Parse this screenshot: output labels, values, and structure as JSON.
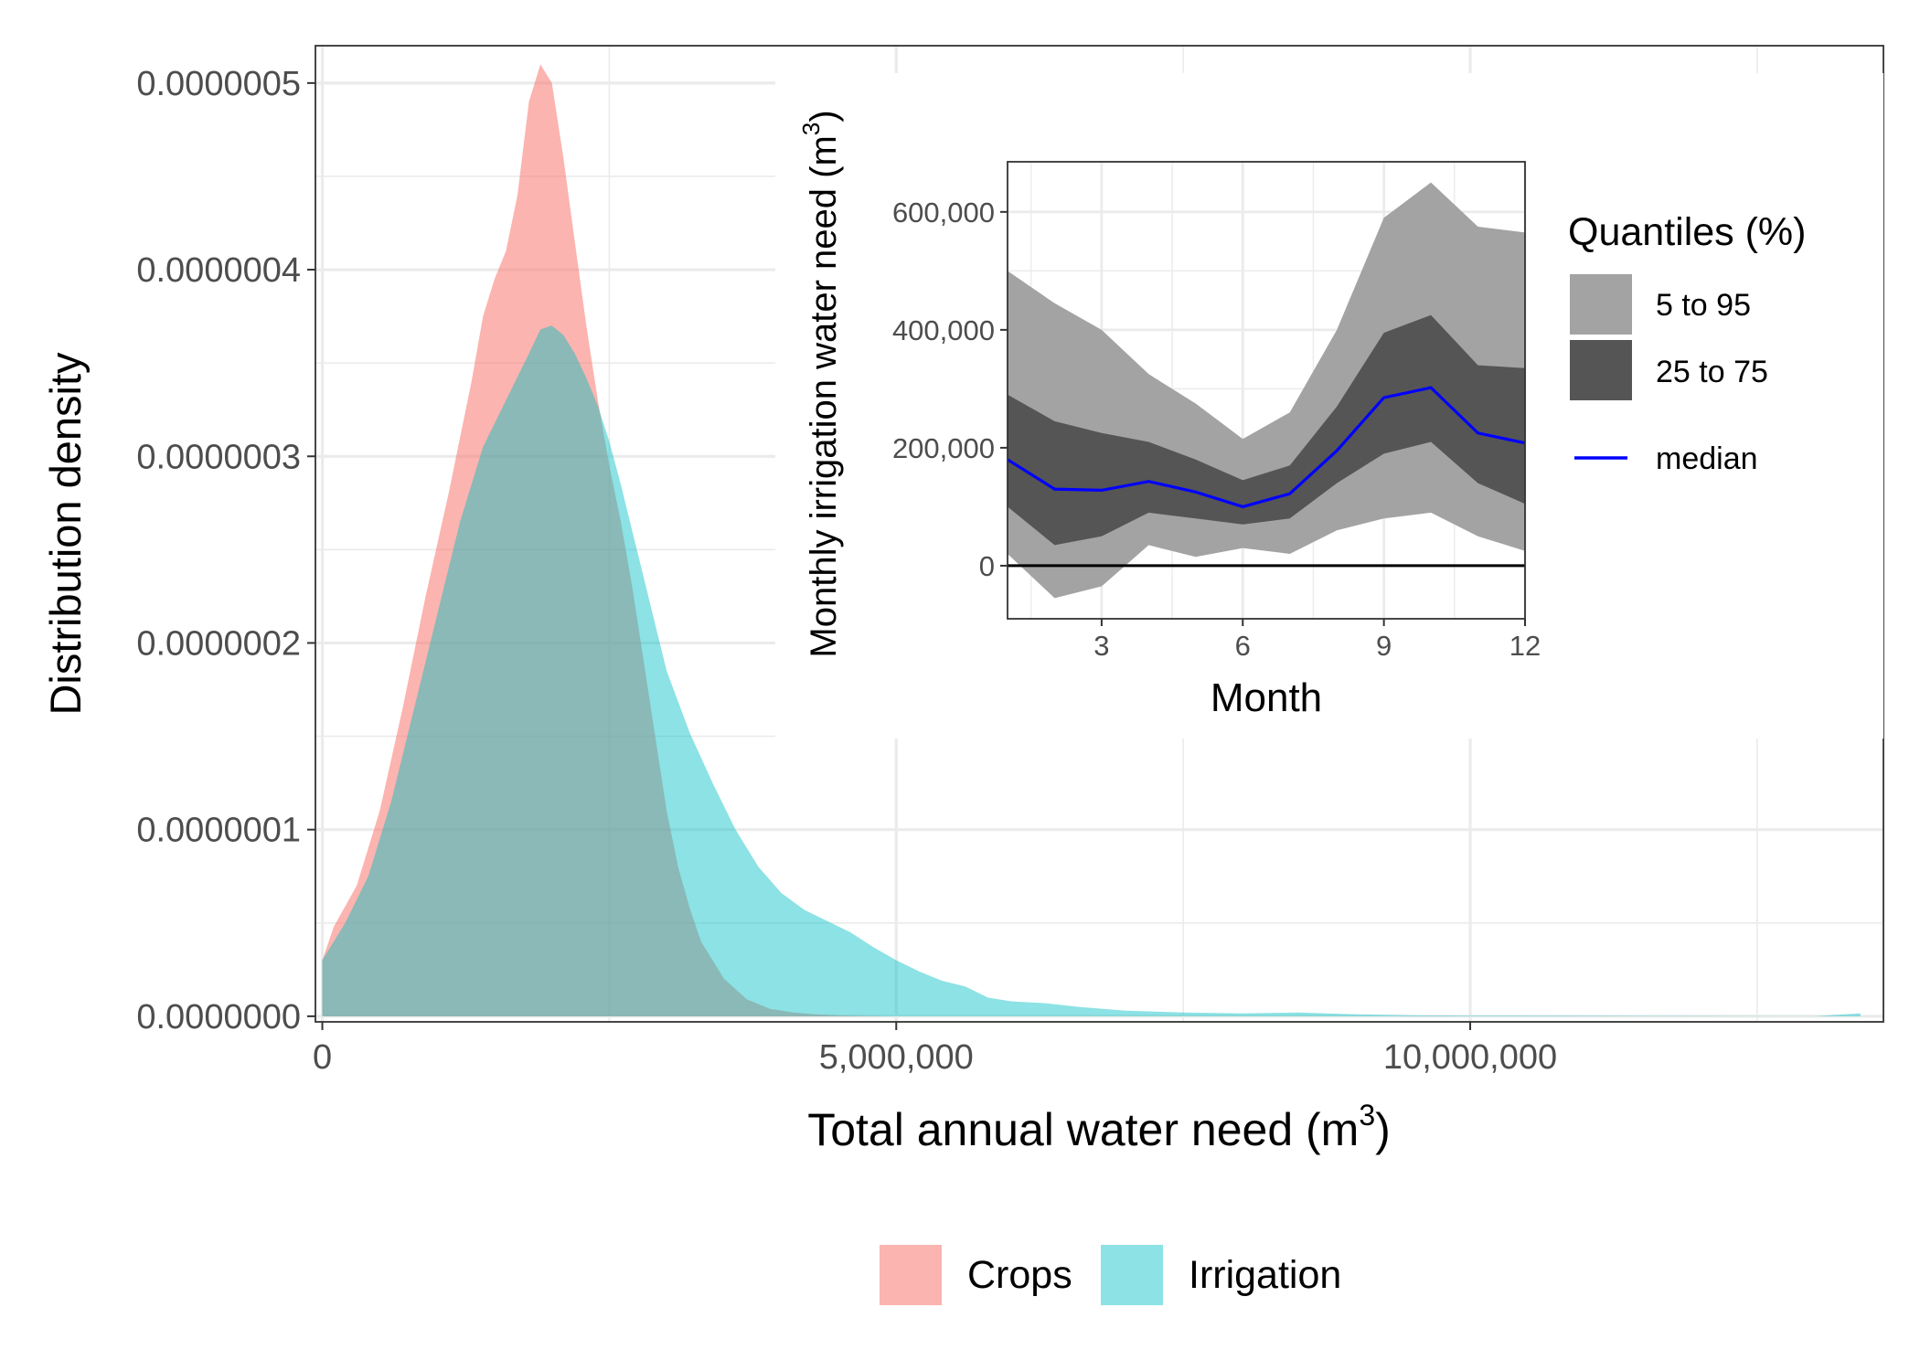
{
  "colors": {
    "crops": "#F8766D",
    "irrigation": "#00BFC4",
    "band_outer": "#A3A3A3",
    "band_inner": "#555555",
    "median": "#0000FF",
    "grid": "#EBEBEB",
    "axis_text": "#4D4D4D"
  },
  "chart_data": [
    {
      "type": "area",
      "title": "",
      "xlabel": "Total annual water need (m",
      "xlabel_sup": "3",
      "xlabel_close": ")",
      "ylabel": "Distribution density",
      "xlim": [
        -60000,
        13600000
      ],
      "ylim": [
        -3e-09,
        5.2e-07
      ],
      "x_ticks": [
        0,
        5000000,
        10000000
      ],
      "x_tick_labels": [
        "0",
        "5,000,000",
        "10,000,000"
      ],
      "y_ticks": [
        0,
        1e-07,
        2e-07,
        3e-07,
        4e-07,
        5e-07
      ],
      "y_tick_labels": [
        "0.0000000",
        "0.0000001",
        "0.0000002",
        "0.0000003",
        "0.0000004",
        "0.0000005"
      ],
      "grid": true,
      "legend": {
        "position": "bottom",
        "entries": [
          "Crops",
          "Irrigation"
        ]
      },
      "series": [
        {
          "name": "Crops",
          "x": [
            0,
            100000,
            300000,
            500000,
            700000,
            900000,
            1100000,
            1300000,
            1400000,
            1500000,
            1600000,
            1700000,
            1800000,
            1900000,
            2000000,
            2100000,
            2200000,
            2300000,
            2400000,
            2500000,
            2600000,
            2700000,
            2800000,
            2900000,
            3000000,
            3100000,
            3200000,
            3300000,
            3500000,
            3700000,
            3900000,
            4100000,
            4300000,
            4500000,
            4700000,
            5000000
          ],
          "y": [
            3e-08,
            4.8e-08,
            7e-08,
            1.1e-07,
            1.65e-07,
            2.25e-07,
            2.8e-07,
            3.4e-07,
            3.75e-07,
            3.95e-07,
            4.1e-07,
            4.4e-07,
            4.9e-07,
            5.1e-07,
            5e-07,
            4.6e-07,
            4.15e-07,
            3.7e-07,
            3.3e-07,
            2.95e-07,
            2.65e-07,
            2.3e-07,
            1.9e-07,
            1.5e-07,
            1.1e-07,
            8e-08,
            5.8e-08,
            4e-08,
            2e-08,
            9e-09,
            4e-09,
            2e-09,
            1e-09,
            5e-10,
            2e-10,
            0
          ]
        },
        {
          "name": "Irrigation",
          "x": [
            0,
            200000,
            400000,
            600000,
            800000,
            1000000,
            1200000,
            1400000,
            1600000,
            1800000,
            1900000,
            2000000,
            2100000,
            2200000,
            2300000,
            2400000,
            2500000,
            2600000,
            2700000,
            2800000,
            2900000,
            3000000,
            3200000,
            3400000,
            3600000,
            3800000,
            4000000,
            4200000,
            4400000,
            4600000,
            4800000,
            5000000,
            5200000,
            5400000,
            5600000,
            5800000,
            6000000,
            6300000,
            6600000,
            7000000,
            7500000,
            8000000,
            8500000,
            9000000,
            9500000,
            10000000,
            11000000,
            12000000,
            13000000,
            13400000
          ],
          "y": [
            3e-08,
            5e-08,
            7.5e-08,
            1.15e-07,
            1.65e-07,
            2.15e-07,
            2.65e-07,
            3.05e-07,
            3.3e-07,
            3.55e-07,
            3.68e-07,
            3.7e-07,
            3.65e-07,
            3.55e-07,
            3.42e-07,
            3.27e-07,
            3.08e-07,
            2.85e-07,
            2.6e-07,
            2.35e-07,
            2.1e-07,
            1.85e-07,
            1.52e-07,
            1.25e-07,
            1e-07,
            8e-08,
            6.6e-08,
            5.7e-08,
            5.1e-08,
            4.5e-08,
            3.7e-08,
            3e-08,
            2.4e-08,
            1.9e-08,
            1.6e-08,
            1e-08,
            8e-09,
            7e-09,
            5e-09,
            3e-09,
            2e-09,
            1.5e-09,
            2e-09,
            1e-09,
            5e-10,
            4e-10,
            3e-10,
            2e-10,
            1e-10,
            1.5e-09
          ]
        }
      ]
    },
    {
      "type": "area",
      "title": "",
      "xlabel": "Month",
      "ylabel": "Monthly irrigation water need (m",
      "ylabel_sup": "3",
      "ylabel_close": ")",
      "xlim": [
        1,
        12
      ],
      "ylim": [
        -90000,
        685000
      ],
      "x_ticks": [
        3,
        6,
        9,
        12
      ],
      "x_tick_labels": [
        "3",
        "6",
        "9",
        "12"
      ],
      "y_ticks": [
        0,
        200000,
        400000,
        600000
      ],
      "y_tick_labels": [
        "0",
        "200,000",
        "400,000",
        "600,000"
      ],
      "grid": true,
      "legend": {
        "position": "right",
        "title": "Quantiles (%)",
        "entries": [
          "5 to 95",
          "25 to 75",
          "median"
        ]
      },
      "x": [
        1,
        2,
        3,
        4,
        5,
        6,
        7,
        8,
        9,
        10,
        11,
        12
      ],
      "series": [
        {
          "name": "5 to 95",
          "lower": [
            20000,
            -55000,
            -35000,
            35000,
            15000,
            30000,
            20000,
            60000,
            80000,
            90000,
            50000,
            25000
          ],
          "upper": [
            500000,
            445000,
            400000,
            325000,
            275000,
            215000,
            260000,
            400000,
            590000,
            650000,
            575000,
            565000
          ]
        },
        {
          "name": "25 to 75",
          "lower": [
            100000,
            35000,
            50000,
            90000,
            80000,
            70000,
            80000,
            140000,
            190000,
            210000,
            140000,
            105000
          ],
          "upper": [
            290000,
            245000,
            225000,
            210000,
            180000,
            145000,
            170000,
            270000,
            395000,
            425000,
            340000,
            335000
          ]
        },
        {
          "name": "median",
          "values": [
            180000,
            130000,
            128000,
            143000,
            125000,
            100000,
            122000,
            195000,
            285000,
            302000,
            225000,
            208000
          ]
        }
      ]
    }
  ]
}
